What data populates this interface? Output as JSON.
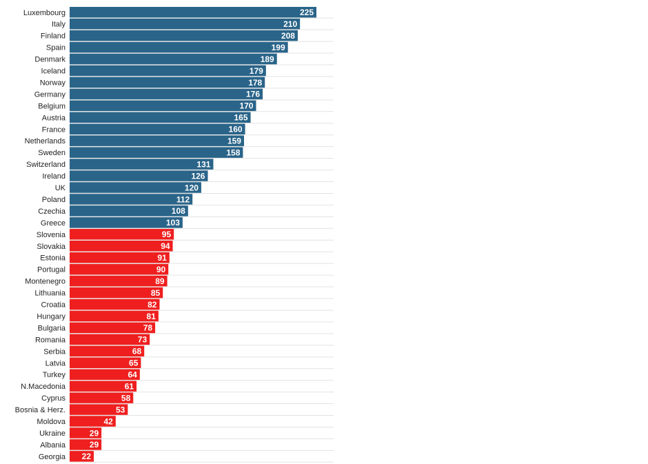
{
  "chart_data": {
    "type": "bar",
    "orientation": "horizontal",
    "categories": [
      "Luxembourg",
      "Italy",
      "Finland",
      "Spain",
      "Denmark",
      "Iceland",
      "Norway",
      "Germany",
      "Belgium",
      "Austria",
      "France",
      "Netherlands",
      "Sweden",
      "Switzerland",
      "Ireland",
      "UK",
      "Poland",
      "Czechia",
      "Greece",
      "Slovenia",
      "Slovakia",
      "Estonia",
      "Portugal",
      "Montenegro",
      "Lithuania",
      "Croatia",
      "Hungary",
      "Bulgaria",
      "Romania",
      "Serbia",
      "Latvia",
      "Turkey",
      "N.Macedonia",
      "Cyprus",
      "Bosnia & Herz.",
      "Moldova",
      "Ukraine",
      "Albania",
      "Georgia"
    ],
    "values": [
      225,
      210,
      208,
      199,
      189,
      179,
      178,
      176,
      170,
      165,
      160,
      159,
      158,
      131,
      126,
      120,
      112,
      108,
      103,
      95,
      94,
      91,
      90,
      89,
      85,
      82,
      81,
      78,
      73,
      68,
      65,
      64,
      61,
      58,
      53,
      42,
      29,
      29,
      22
    ],
    "value_labels": [
      "225",
      "210",
      "208",
      "199",
      "189",
      "179",
      "178",
      "176",
      "170",
      "165",
      "160",
      "159",
      "158",
      "131",
      "126",
      "120",
      "112",
      "108",
      "103",
      "95",
      "94",
      "91",
      "90",
      "89",
      "85",
      "82",
      "81",
      "78",
      "73",
      "68",
      "65",
      "64",
      "61",
      "58",
      "53",
      "42",
      "29",
      "29",
      "22"
    ],
    "threshold": 100,
    "xlim": [
      0,
      225
    ],
    "grid": true,
    "colors": {
      "above_threshold": "#2a6489",
      "below_threshold": "#ef1f1f",
      "gridline": "#e3e3e3",
      "value_text": "#ffffff",
      "category_text": "#222222"
    }
  }
}
